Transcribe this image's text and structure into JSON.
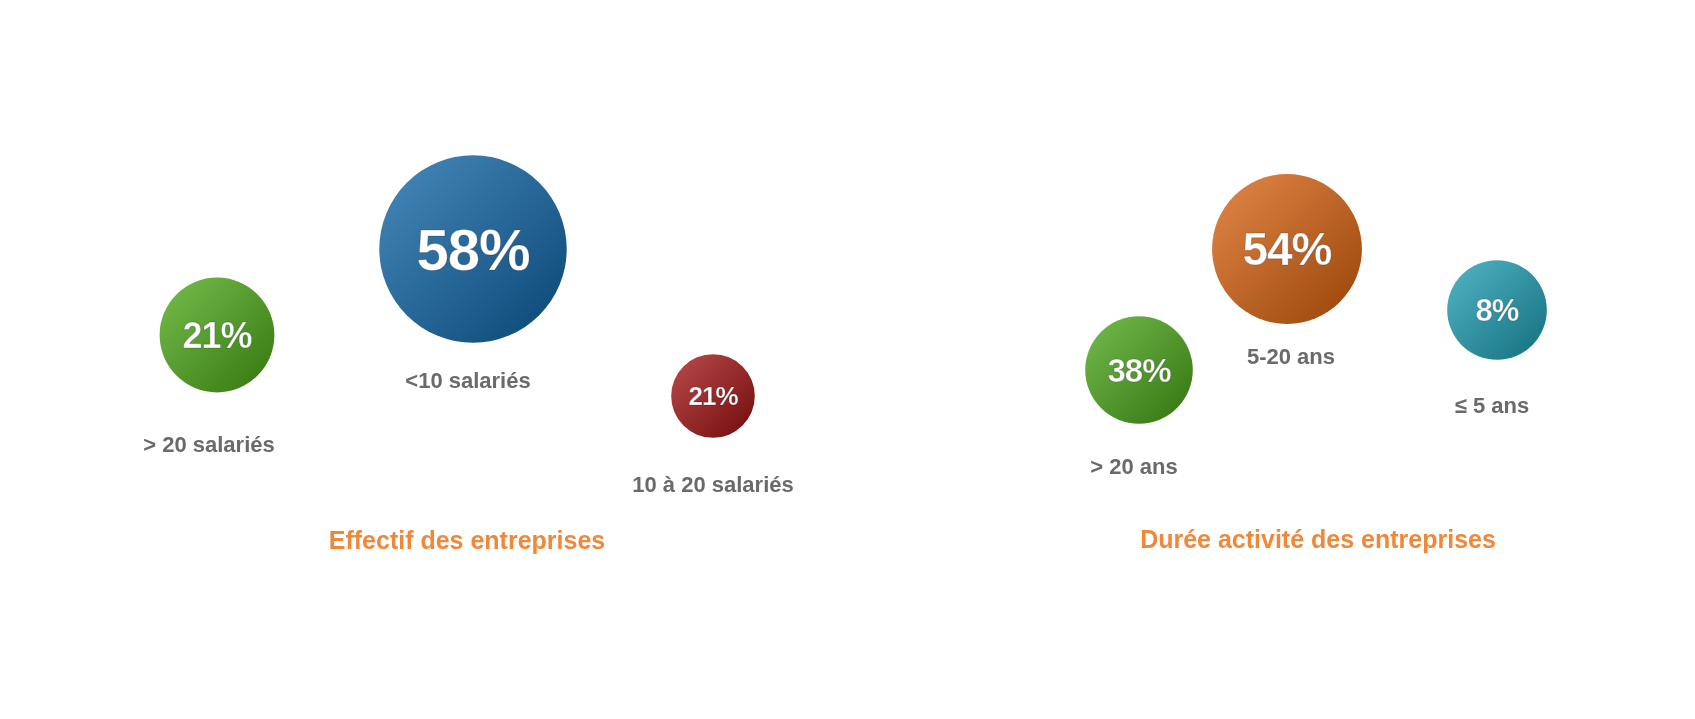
{
  "chart_data": [
    {
      "type": "other",
      "title": "Effectif des entreprises",
      "categories": [
        "> 20 salariés",
        "<10 salariés",
        "10 à 20 salariés"
      ],
      "values": [
        21,
        58,
        21
      ],
      "value_labels": [
        "21%",
        "58%",
        "21%"
      ],
      "colors": [
        "#4aa812",
        "#0b63a6",
        "#a30f0f"
      ]
    },
    {
      "type": "other",
      "title": "Durée activité des entreprises",
      "categories": [
        "> 20 ans",
        "5-20 ans",
        "≤ 5 ans"
      ],
      "values": [
        38,
        54,
        8
      ],
      "value_labels": [
        "38%",
        "54%",
        "8%"
      ],
      "colors": [
        "#47a514",
        "#d9600c",
        "#1a9db2"
      ]
    }
  ]
}
